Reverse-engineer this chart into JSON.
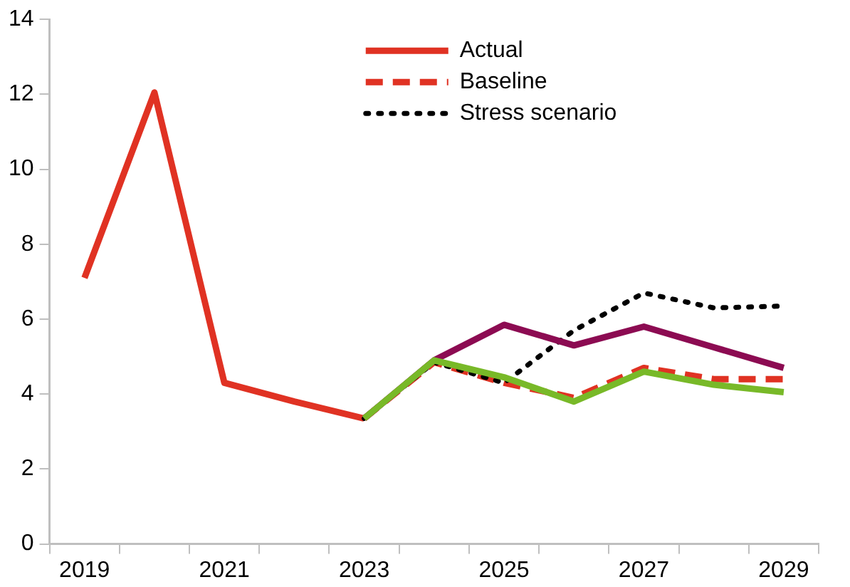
{
  "chart_data": {
    "type": "line",
    "categories": [
      "2019",
      null,
      "2021",
      null,
      "2023",
      null,
      "2025",
      null,
      "2027",
      null,
      "2029"
    ],
    "series": [
      {
        "name": "Actual",
        "color": "#e03223",
        "line_style": "solid",
        "values": [
          7.1,
          12.05,
          4.3,
          3.8,
          3.35,
          null,
          null,
          null,
          null,
          null,
          null
        ]
      },
      {
        "name": "Baseline",
        "color": "#e03223",
        "line_style": "dashed",
        "values": [
          null,
          null,
          null,
          null,
          3.35,
          4.85,
          4.3,
          3.9,
          4.7,
          4.4,
          4.4
        ]
      },
      {
        "name": "Stress scenario",
        "color": "#000000",
        "line_style": "dotted",
        "values": [
          null,
          null,
          null,
          null,
          3.35,
          4.85,
          4.3,
          5.7,
          6.7,
          6.3,
          6.35
        ]
      },
      {
        "color": "#8c0b52",
        "line_style": "solid",
        "values": [
          null,
          null,
          null,
          null,
          3.35,
          4.9,
          5.85,
          5.3,
          5.8,
          5.25,
          4.7
        ]
      },
      {
        "color": "#78b928",
        "line_style": "solid",
        "values": [
          null,
          null,
          null,
          null,
          3.35,
          4.9,
          4.45,
          3.8,
          4.6,
          4.25,
          4.05
        ]
      }
    ],
    "ylim": [
      0,
      14
    ],
    "yticks": [
      0,
      2,
      4,
      6,
      8,
      10,
      12,
      14
    ],
    "grid": false,
    "legend": "top right",
    "marker": "none"
  }
}
